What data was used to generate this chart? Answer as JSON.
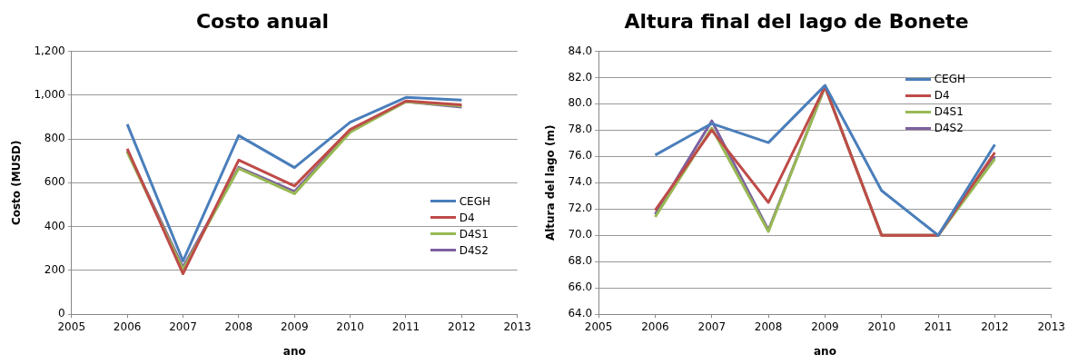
{
  "chart_data": [
    {
      "type": "line",
      "title": "Costo anual",
      "xlabel": "ano",
      "ylabel": "Costo (MUSD)",
      "x": [
        2006,
        2007,
        2008,
        2009,
        2010,
        2011,
        2012
      ],
      "xlim": [
        2005,
        2013
      ],
      "xticks": [
        2005,
        2006,
        2007,
        2008,
        2009,
        2010,
        2011,
        2012,
        2013
      ],
      "ylim": [
        0,
        1200
      ],
      "yticks": [
        0,
        {
          "value": 200,
          "label": "200"
        },
        {
          "value": 400,
          "label": "400"
        },
        {
          "value": 600,
          "label": "600"
        },
        {
          "value": 800,
          "label": "800"
        },
        {
          "value": 1000,
          "label": "1,000"
        },
        {
          "value": 1200,
          "label": "1,200"
        }
      ],
      "grid": "y",
      "legend": "right",
      "marker": "none",
      "series": [
        {
          "name": "CEGH",
          "color": "#4a7ebb",
          "values": [
            867,
            243,
            815,
            669,
            876,
            989,
            977
          ]
        },
        {
          "name": "D4",
          "color": "#be4b48",
          "values": [
            755,
            185,
            703,
            585,
            843,
            973,
            955
          ]
        },
        {
          "name": "D4S1",
          "color": "#98b954",
          "values": [
            740,
            205,
            665,
            550,
            830,
            970,
            950
          ]
        },
        {
          "name": "D4S2",
          "color": "#7d60a0",
          "values": [
            745,
            215,
            670,
            560,
            835,
            970,
            945
          ]
        }
      ]
    },
    {
      "type": "line",
      "title": "Altura final del lago de Bonete",
      "xlabel": "ano",
      "ylabel": "Altura del lago (m)",
      "x": [
        2006,
        2007,
        2008,
        2009,
        2010,
        2011,
        2012
      ],
      "xlim": [
        2005,
        2013
      ],
      "xticks": [
        2005,
        2006,
        2007,
        2008,
        2009,
        2010,
        2011,
        2012,
        2013
      ],
      "ylim": [
        64,
        84
      ],
      "yticks": [
        {
          "value": 64,
          "label": "64.0"
        },
        {
          "value": 66,
          "label": "66.0"
        },
        {
          "value": 68,
          "label": "68.0"
        },
        {
          "value": 70,
          "label": "70.0"
        },
        {
          "value": 72,
          "label": "72.0"
        },
        {
          "value": 74,
          "label": "74.0"
        },
        {
          "value": 76,
          "label": "76.0"
        },
        {
          "value": 78,
          "label": "78.0"
        },
        {
          "value": 80,
          "label": "80.0"
        },
        {
          "value": 82,
          "label": "82.0"
        },
        {
          "value": 84,
          "label": "84.0"
        }
      ],
      "grid": "y",
      "legend": "top right",
      "marker": "none",
      "series": [
        {
          "name": "CEGH",
          "color": "#4a7ebb",
          "values": [
            76.1,
            78.5,
            77.05,
            81.4,
            73.4,
            70.0,
            76.9
          ]
        },
        {
          "name": "D4",
          "color": "#be4b48",
          "values": [
            71.9,
            78.0,
            72.5,
            81.3,
            70.0,
            70.0,
            76.3
          ]
        },
        {
          "name": "D4S1",
          "color": "#98b954",
          "values": [
            71.4,
            78.15,
            70.3,
            81.3,
            70.0,
            70.0,
            75.8
          ]
        },
        {
          "name": "D4S2",
          "color": "#7d60a0",
          "values": [
            71.6,
            78.7,
            70.4,
            81.3,
            70.0,
            70.0,
            76.0
          ]
        }
      ]
    }
  ]
}
